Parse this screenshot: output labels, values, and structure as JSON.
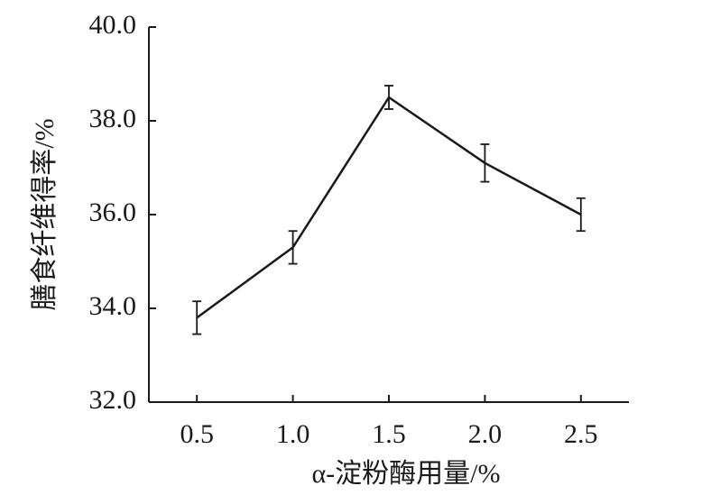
{
  "chart_data": {
    "type": "line",
    "x_label": "α-淀粉酶用量/%",
    "y_label": "膳食纤维得率/%",
    "x": [
      0.5,
      1.0,
      1.5,
      2.0,
      2.5
    ],
    "series": [
      {
        "color": "#1a1a1a",
        "values": [
          33.8,
          35.3,
          38.5,
          37.1,
          36.0
        ],
        "errors": [
          0.35,
          0.35,
          0.25,
          0.4,
          0.35
        ]
      }
    ],
    "xlim": [
      0.25,
      2.75
    ],
    "xticks": [
      0.5,
      {
        "value": 1,
        "label": "1.0"
      },
      1.5,
      {
        "value": 2,
        "label": "2.0"
      },
      2.5
    ],
    "ylim": [
      32,
      40
    ],
    "yticks": [
      {
        "value": 32,
        "label": "32.0"
      },
      {
        "value": 34,
        "label": "34.0"
      },
      {
        "value": 36,
        "label": "36.0"
      },
      {
        "value": 38,
        "label": "38.0"
      },
      {
        "value": 40,
        "label": "40.0"
      }
    ],
    "grid": false
  }
}
